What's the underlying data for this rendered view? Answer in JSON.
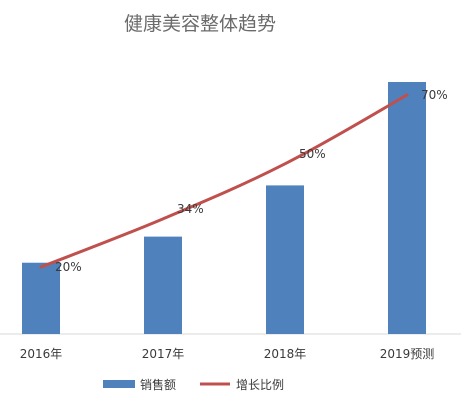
{
  "chart_data": {
    "type": "bar",
    "title": "健康美容整体趋势",
    "categories": [
      "2016年",
      "2017年",
      "2018年",
      "2019预测"
    ],
    "series": [
      {
        "name": "销售额",
        "type": "bar",
        "values": [
          71,
          97,
          148,
          251
        ],
        "color": "#4f81bd"
      },
      {
        "name": "增长比例",
        "type": "line",
        "values": [
          20,
          34,
          50,
          70
        ],
        "labels": [
          "20%",
          "34%",
          "50%",
          "70%"
        ],
        "color": "#c0504d"
      }
    ],
    "legend": "bottom",
    "grid": false
  }
}
